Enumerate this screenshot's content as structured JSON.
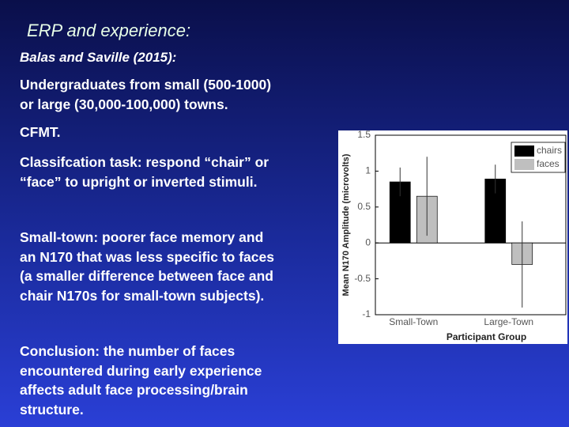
{
  "slide": {
    "title": "ERP and experience:",
    "subtitle": "Balas and Saville (2015):",
    "paragraphs": [
      [
        "Undergraduates from small (500-1000)",
        "or large (30,000-100,000) towns."
      ],
      [
        "CFMT."
      ],
      [
        "Classifcation task: respond “chair” or",
        "“face” to upright or inverted stimuli."
      ],
      [
        "Small-town: poorer face memory and",
        "an N170 that was less specific to faces",
        "(a smaller difference between face and",
        "chair N170s for small-town subjects)."
      ],
      [
        "Conclusion: the number of faces",
        "encountered during early experience",
        "affects adult face processing/brain",
        "structure."
      ]
    ]
  },
  "chart_data": {
    "type": "bar",
    "x_label": "Participant Group",
    "y_label": "Mean N170 Amplitude (microvolts)",
    "categories": [
      "Small-Town",
      "Large-Town"
    ],
    "series": [
      {
        "name": "chairs",
        "color": "#000000",
        "values": [
          0.85,
          0.89
        ],
        "errors": [
          0.2,
          0.2
        ]
      },
      {
        "name": "faces",
        "color": "#bfbfbf",
        "values": [
          0.65,
          -0.3
        ],
        "errors": [
          0.55,
          0.6
        ]
      }
    ],
    "ylim": [
      -1,
      1.5
    ],
    "yticks": [
      -1,
      -0.5,
      0,
      0.5,
      1,
      1.5
    ],
    "legend": "upper right"
  }
}
